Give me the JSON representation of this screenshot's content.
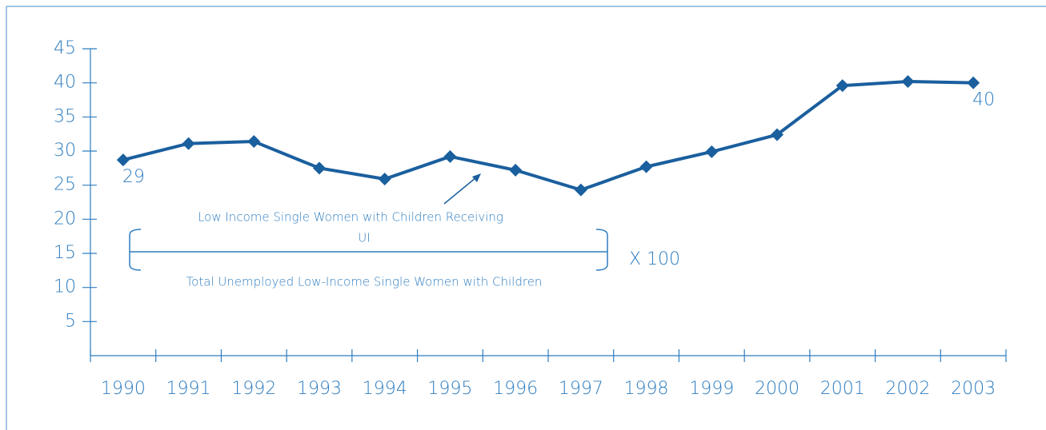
{
  "chart_data": {
    "type": "line",
    "categories": [
      "1990",
      "1991",
      "1992",
      "1993",
      "1994",
      "1995",
      "1996",
      "1997",
      "1998",
      "1999",
      "2000",
      "2001",
      "2002",
      "2003"
    ],
    "values": [
      28.7,
      31.1,
      31.4,
      27.5,
      25.9,
      29.2,
      27.2,
      24.3,
      27.7,
      29.9,
      32.4,
      39.6,
      40.2,
      40.0
    ],
    "value_labels": [
      "29",
      null,
      null,
      null,
      null,
      null,
      null,
      null,
      null,
      null,
      null,
      null,
      null,
      "40"
    ],
    "color": "#1a5f9e",
    "ylim": [
      0,
      45
    ],
    "yticks": [
      5,
      10,
      15,
      20,
      25,
      30,
      35,
      40,
      45
    ],
    "annotation": {
      "numerator": [
        "Low Income Single Women with Children Receiving",
        "UI"
      ],
      "denominator": "Total Unemployed Low-Income Single Women with Children",
      "multiplier": "X 100"
    }
  }
}
